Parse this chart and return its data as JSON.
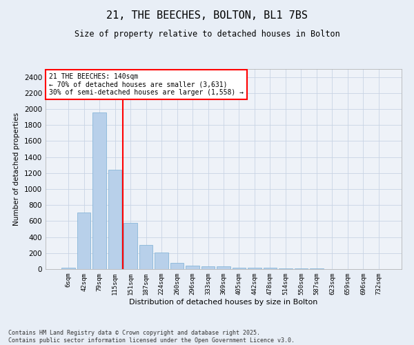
{
  "title_line1": "21, THE BEECHES, BOLTON, BL1 7BS",
  "title_line2": "Size of property relative to detached houses in Bolton",
  "xlabel": "Distribution of detached houses by size in Bolton",
  "ylabel": "Number of detached properties",
  "categories": [
    "6sqm",
    "42sqm",
    "79sqm",
    "115sqm",
    "151sqm",
    "187sqm",
    "224sqm",
    "260sqm",
    "296sqm",
    "333sqm",
    "369sqm",
    "405sqm",
    "442sqm",
    "478sqm",
    "514sqm",
    "550sqm",
    "587sqm",
    "623sqm",
    "659sqm",
    "696sqm",
    "732sqm"
  ],
  "values": [
    15,
    710,
    1960,
    1240,
    575,
    305,
    205,
    75,
    40,
    35,
    35,
    20,
    15,
    15,
    10,
    5,
    10,
    0,
    0,
    0,
    0
  ],
  "bar_color": "#b8d0ea",
  "bar_edge_color": "#7aafd4",
  "grid_color": "#c8d4e4",
  "vline_x": 3.5,
  "vline_color": "red",
  "annotation_text": "21 THE BEECHES: 140sqm\n← 70% of detached houses are smaller (3,631)\n30% of semi-detached houses are larger (1,558) →",
  "ylim": [
    0,
    2500
  ],
  "yticks": [
    0,
    200,
    400,
    600,
    800,
    1000,
    1200,
    1400,
    1600,
    1800,
    2000,
    2200,
    2400
  ],
  "footer": "Contains HM Land Registry data © Crown copyright and database right 2025.\nContains public sector information licensed under the Open Government Licence v3.0.",
  "bg_color": "#e8eef6",
  "plot_bg_color": "#eef2f8"
}
